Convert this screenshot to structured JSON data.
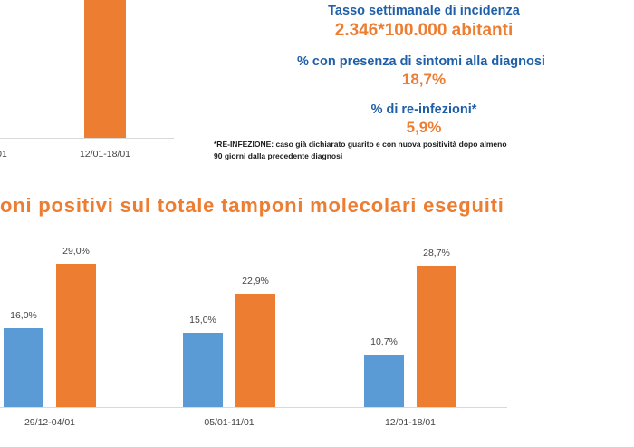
{
  "top_chart": {
    "tick_left": "01",
    "tick_right": "12/01-18/01",
    "colors": {
      "orange": "#ed7d31",
      "axis": "#d9d9d9"
    }
  },
  "stats": {
    "incidence_label": "Tasso settimanale di incidenza",
    "incidence_value": "2.346*100.000 abitanti",
    "symptoms_label": "% con presenza di sintomi alla diagnosi",
    "symptoms_value": "18,7%",
    "reinfection_label": "% di re-infezioni*",
    "reinfection_value": "5,9%",
    "footnote_line1": "*RE-INFEZIONE: caso già dichiarato guarito e con nuova positività dopo almeno",
    "footnote_line2": "90 giorni dalla precedente diagnosi",
    "colors": {
      "label": "#1f5fa8",
      "value": "#ed7d31"
    }
  },
  "section_title": "oni positivi sul totale tamponi molecolari eseguiti",
  "chart_data": {
    "type": "bar",
    "title": "oni positivi sul totale tamponi molecolari eseguiti",
    "categories": [
      "29/12-04/01",
      "05/01-11/01",
      "12/01-18/01"
    ],
    "series": [
      {
        "values": [
          16.0,
          15.0,
          10.7
        ],
        "labels": [
          "16,0%",
          "15,0%",
          "10,7%"
        ],
        "color": "#5b9bd5"
      },
      {
        "values": [
          29.0,
          22.9,
          28.7
        ],
        "labels": [
          "29,0%",
          "22,9%",
          "28,7%"
        ],
        "color": "#ed7d31"
      }
    ],
    "ylim": [
      0,
      30
    ],
    "grid": false,
    "legend": "none"
  }
}
